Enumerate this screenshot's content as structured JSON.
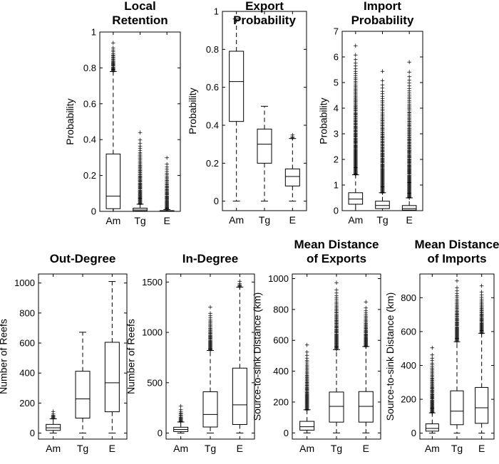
{
  "chart_data": [
    {
      "type": "box",
      "title": [
        "Local",
        "Retention"
      ],
      "ylabel": "Probability",
      "categories": [
        "Am",
        "Tg",
        "E"
      ],
      "ylim": [
        0,
        1
      ],
      "yticks": [
        0,
        0.2,
        0.4,
        0.6,
        0.8,
        1
      ],
      "ytick_labels": [
        "0",
        "0.2",
        "0.4",
        "0.6",
        "0.8",
        "1"
      ],
      "boxes": [
        {
          "whisker_low": 0,
          "q1": 0.015,
          "median": 0.085,
          "q3": 0.32,
          "whisker_high": 0.78,
          "outliers_range": [
            0.78,
            0.94
          ]
        },
        {
          "whisker_low": 0,
          "q1": 0.002,
          "median": 0.008,
          "q3": 0.018,
          "whisker_high": 0.04,
          "outliers_range": [
            0.04,
            0.44
          ]
        },
        {
          "whisker_low": 0,
          "q1": 0.0,
          "median": 0.001,
          "q3": 0.004,
          "whisker_high": 0.01,
          "outliers_range": [
            0.01,
            0.3
          ]
        }
      ]
    },
    {
      "type": "box",
      "title": [
        "Export",
        "Probability"
      ],
      "ylabel": "Probability",
      "categories": [
        "Am",
        "Tg",
        "E"
      ],
      "ylim": [
        -0.05,
        1
      ],
      "yticks": [
        0,
        0.2,
        0.4,
        0.6,
        0.8,
        1
      ],
      "ytick_labels": [
        "0",
        "0.2",
        "0.4",
        "0.6",
        "0.8",
        "1"
      ],
      "boxes": [
        {
          "whisker_low": 0,
          "q1": 0.42,
          "median": 0.63,
          "q3": 0.79,
          "whisker_high": 0.96,
          "outliers_range": null
        },
        {
          "whisker_low": 0,
          "q1": 0.2,
          "median": 0.3,
          "q3": 0.38,
          "whisker_high": 0.5,
          "outliers_range": null
        },
        {
          "whisker_low": 0,
          "q1": 0.08,
          "median": 0.13,
          "q3": 0.17,
          "whisker_high": 0.33,
          "outliers_range": [
            0.33,
            0.35
          ]
        }
      ]
    },
    {
      "type": "box",
      "title": [
        "Import",
        "Probability"
      ],
      "ylabel": "Probability",
      "categories": [
        "Am",
        "Tg",
        "E"
      ],
      "ylim": [
        0,
        7
      ],
      "yticks": [
        0,
        1,
        2,
        3,
        4,
        5,
        6,
        7
      ],
      "ytick_labels": [
        "0",
        "1",
        "2",
        "3",
        "4",
        "5",
        "6",
        "7"
      ],
      "boxes": [
        {
          "whisker_low": 0,
          "q1": 0.25,
          "median": 0.45,
          "q3": 0.7,
          "whisker_high": 1.4,
          "outliers_range": [
            1.4,
            6.45
          ]
        },
        {
          "whisker_low": 0,
          "q1": 0.08,
          "median": 0.2,
          "q3": 0.37,
          "whisker_high": 0.7,
          "outliers_range": [
            0.7,
            5.45
          ]
        },
        {
          "whisker_low": 0,
          "q1": 0.02,
          "median": 0.08,
          "q3": 0.2,
          "whisker_high": 0.5,
          "outliers_range": [
            0.5,
            5.8
          ]
        }
      ]
    },
    {
      "type": "box",
      "title": [
        "Out-Degree"
      ],
      "ylabel": "Number of Reefs",
      "categories": [
        "Am",
        "Tg",
        "E"
      ],
      "ylim": [
        -40,
        1060
      ],
      "yticks": [
        0,
        200,
        400,
        600,
        800,
        1000
      ],
      "ytick_labels": [
        "0",
        "200",
        "400",
        "600",
        "800",
        "1000"
      ],
      "boxes": [
        {
          "whisker_low": 0,
          "q1": 18,
          "median": 35,
          "q3": 58,
          "whisker_high": 95,
          "outliers_range": [
            95,
            145
          ]
        },
        {
          "whisker_low": 0,
          "q1": 100,
          "median": 228,
          "q3": 412,
          "whisker_high": 672,
          "outliers_range": null
        },
        {
          "whisker_low": 0,
          "q1": 142,
          "median": 335,
          "q3": 605,
          "whisker_high": 1010,
          "outliers_range": null
        }
      ]
    },
    {
      "type": "box",
      "title": [
        "In-Degree"
      ],
      "ylabel": "Number of Reefs",
      "categories": [
        "Am",
        "Tg",
        "E"
      ],
      "ylim": [
        -60,
        1580
      ],
      "yticks": [
        0,
        500,
        1000,
        1500
      ],
      "ytick_labels": [
        "0",
        "500",
        "1000",
        "1500"
      ],
      "boxes": [
        {
          "whisker_low": 0,
          "q1": 15,
          "median": 35,
          "q3": 58,
          "whisker_high": 110,
          "outliers_range": [
            110,
            270
          ]
        },
        {
          "whisker_low": 0,
          "q1": 60,
          "median": 185,
          "q3": 410,
          "whisker_high": 820,
          "outliers_range": [
            820,
            1250
          ]
        },
        {
          "whisker_low": 0,
          "q1": 85,
          "median": 280,
          "q3": 645,
          "whisker_high": 1450,
          "outliers_range": [
            1450,
            1510
          ]
        }
      ]
    },
    {
      "type": "box",
      "title": [
        "Mean Distance",
        "of Exports"
      ],
      "ylabel": "Source-to-sink Distance (km)",
      "categories": [
        "Am",
        "Tg",
        "E"
      ],
      "ylim": [
        -40,
        1030
      ],
      "yticks": [
        0,
        200,
        400,
        600,
        800,
        1000
      ],
      "ytick_labels": [
        "0",
        "200",
        "400",
        "600",
        "800",
        "1000"
      ],
      "boxes": [
        {
          "whisker_low": 0,
          "q1": 18,
          "median": 40,
          "q3": 75,
          "whisker_high": 150,
          "outliers_range": [
            150,
            570
          ]
        },
        {
          "whisker_low": 0,
          "q1": 70,
          "median": 172,
          "q3": 265,
          "whisker_high": 540,
          "outliers_range": [
            540,
            975
          ]
        },
        {
          "whisker_low": 0,
          "q1": 70,
          "median": 172,
          "q3": 268,
          "whisker_high": 560,
          "outliers_range": [
            560,
            850
          ]
        }
      ]
    },
    {
      "type": "box",
      "title": [
        "Mean Distance",
        "of Imports"
      ],
      "ylabel": "Source-to-sink Distance (km)",
      "categories": [
        "Am",
        "Tg",
        "E"
      ],
      "ylim": [
        -35,
        940
      ],
      "yticks": [
        0,
        200,
        400,
        600,
        800
      ],
      "ytick_labels": [
        "0",
        "200",
        "400",
        "600",
        "800"
      ],
      "boxes": [
        {
          "whisker_low": 0,
          "q1": 12,
          "median": 28,
          "q3": 55,
          "whisker_high": 120,
          "outliers_range": [
            120,
            505
          ]
        },
        {
          "whisker_low": 0,
          "q1": 50,
          "median": 130,
          "q3": 250,
          "whisker_high": 540,
          "outliers_range": [
            540,
            900
          ]
        },
        {
          "whisker_low": 0,
          "q1": 58,
          "median": 150,
          "q3": 270,
          "whisker_high": 590,
          "outliers_range": [
            590,
            870
          ]
        }
      ]
    }
  ]
}
